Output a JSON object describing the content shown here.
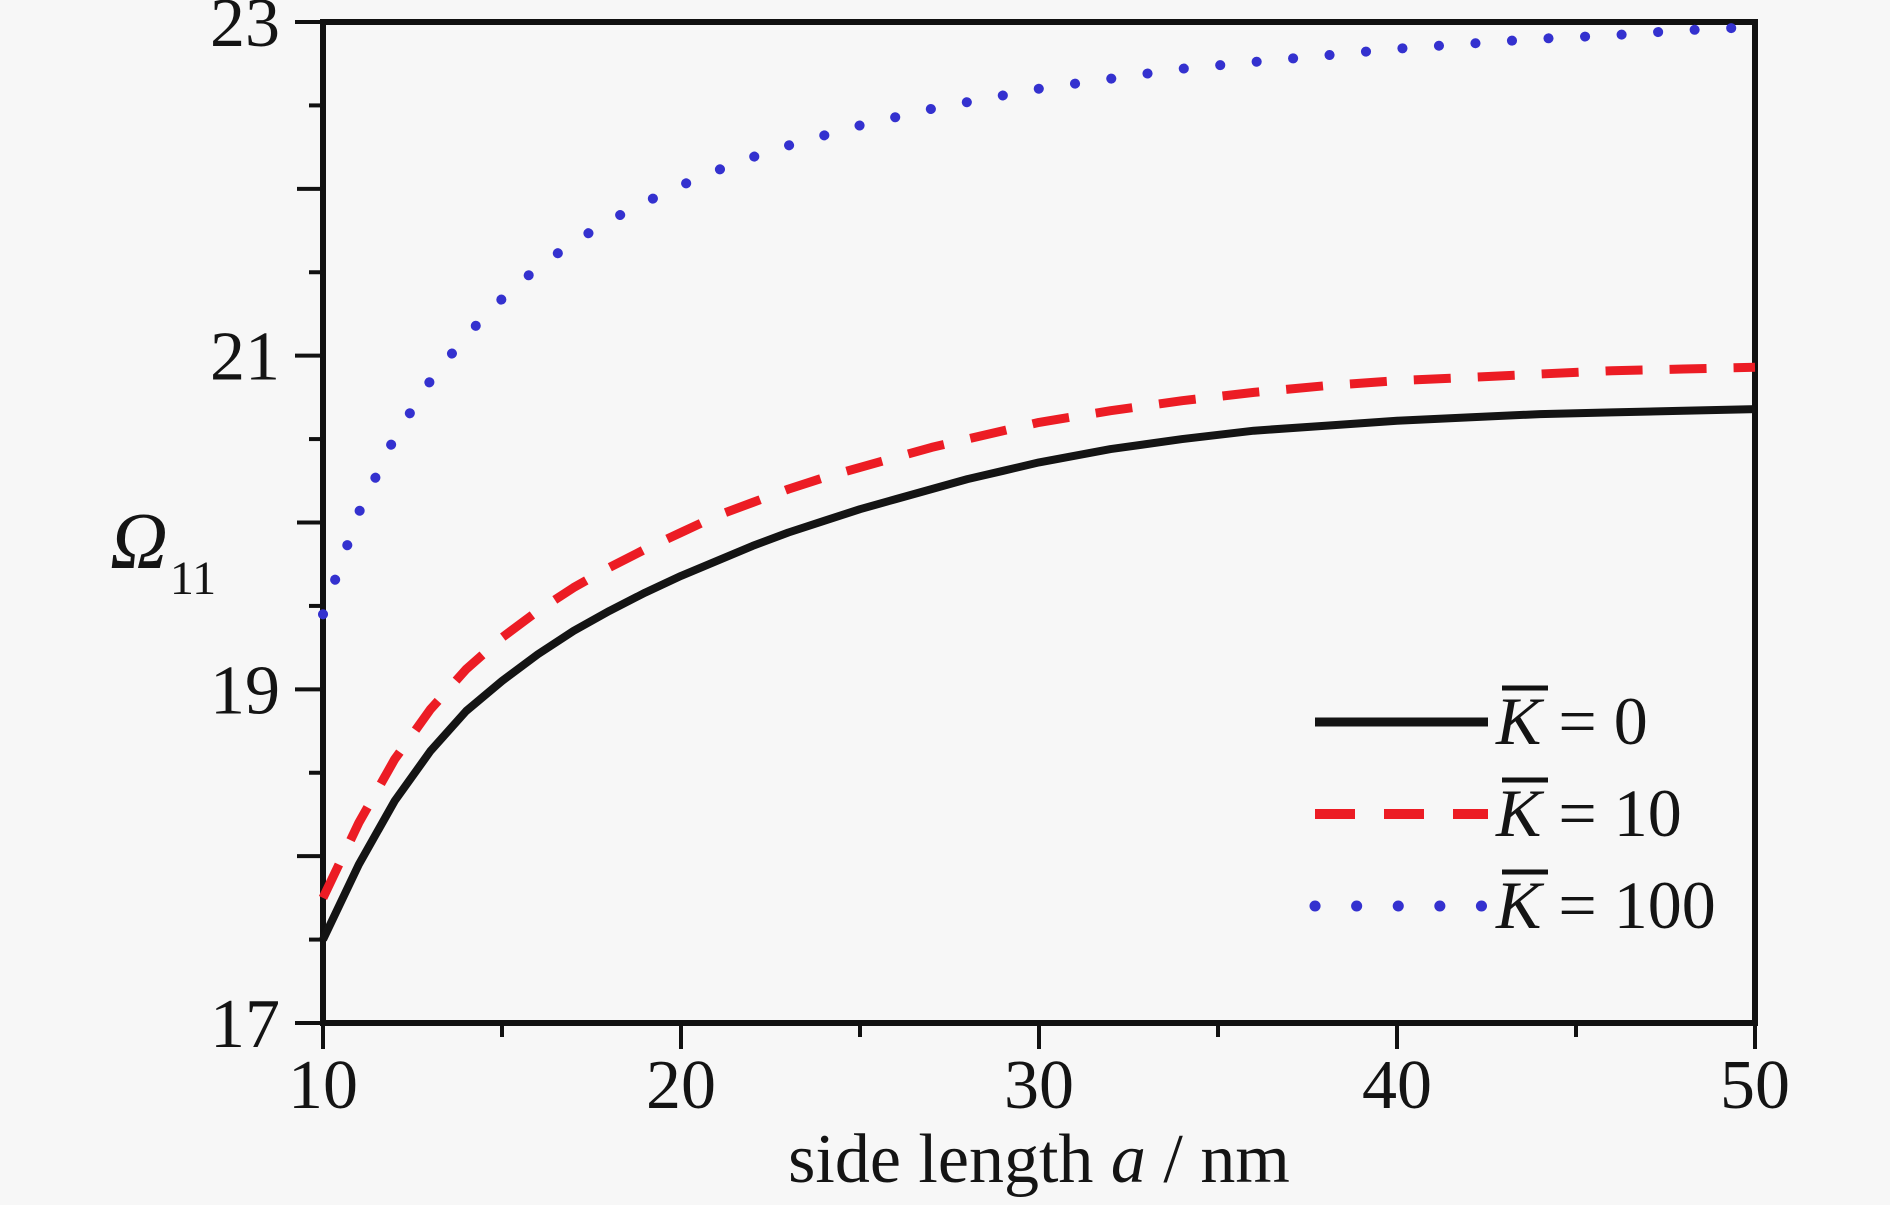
{
  "figure": {
    "background": "#f7f7f7",
    "frame_color": "#111111"
  },
  "chart_data": {
    "type": "line",
    "title": "",
    "xlabel_parts": {
      "prefix": "side length ",
      "italic_symbol": "a",
      "suffix": " / nm"
    },
    "ylabel_parts": {
      "symbol": "Ω",
      "subscript": "11"
    },
    "x_range": [
      10,
      50
    ],
    "y_range": [
      17,
      23
    ],
    "x_major_ticks": [
      {
        "value": 10,
        "label": "10"
      },
      {
        "value": 20,
        "label": "20"
      },
      {
        "value": 30,
        "label": "30"
      },
      {
        "value": 40,
        "label": "40"
      },
      {
        "value": 50,
        "label": "50"
      }
    ],
    "x_minor_ticks": [
      15,
      25,
      35,
      45
    ],
    "y_labeled_ticks": [
      {
        "value": 17,
        "label": "17"
      },
      {
        "value": 19,
        "label": "19"
      },
      {
        "value": 21,
        "label": "21"
      },
      {
        "value": 23,
        "label": "23"
      }
    ],
    "y_mid_ticks": [
      18,
      20,
      22
    ],
    "y_minor_ticks": [
      17.5,
      18.5,
      19.5,
      20.5,
      21.5,
      22.5
    ],
    "grid": false,
    "legend_position": "bottom-right",
    "series": [
      {
        "key": "k0",
        "legend_symbol": "K",
        "legend_overbar": true,
        "legend_suffix": " = 0",
        "color": "#141414",
        "line": "solid",
        "width": 8,
        "points": [
          [
            10,
            17.5
          ],
          [
            11,
            17.95
          ],
          [
            12,
            18.33
          ],
          [
            13,
            18.63
          ],
          [
            14,
            18.87
          ],
          [
            15,
            19.05
          ],
          [
            16,
            19.21
          ],
          [
            17,
            19.35
          ],
          [
            18,
            19.47
          ],
          [
            19,
            19.58
          ],
          [
            20,
            19.68
          ],
          [
            21,
            19.77
          ],
          [
            22,
            19.86
          ],
          [
            23,
            19.94
          ],
          [
            24,
            20.01
          ],
          [
            25,
            20.08
          ],
          [
            26,
            20.14
          ],
          [
            27,
            20.2
          ],
          [
            28,
            20.26
          ],
          [
            29,
            20.31
          ],
          [
            30,
            20.36
          ],
          [
            32,
            20.44
          ],
          [
            34,
            20.5
          ],
          [
            36,
            20.55
          ],
          [
            38,
            20.58
          ],
          [
            40,
            20.61
          ],
          [
            42,
            20.63
          ],
          [
            44,
            20.65
          ],
          [
            46,
            20.66
          ],
          [
            48,
            20.67
          ],
          [
            50,
            20.68
          ]
        ]
      },
      {
        "key": "k10",
        "legend_symbol": "K",
        "legend_overbar": true,
        "legend_suffix": " = 10",
        "color": "#ec1c24",
        "line": "dashed",
        "width": 9,
        "points": [
          [
            10,
            17.75
          ],
          [
            11,
            18.2
          ],
          [
            12,
            18.58
          ],
          [
            13,
            18.88
          ],
          [
            14,
            19.12
          ],
          [
            15,
            19.31
          ],
          [
            16,
            19.47
          ],
          [
            17,
            19.61
          ],
          [
            18,
            19.73
          ],
          [
            19,
            19.84
          ],
          [
            20,
            19.94
          ],
          [
            21,
            20.04
          ],
          [
            22,
            20.12
          ],
          [
            23,
            20.2
          ],
          [
            24,
            20.27
          ],
          [
            25,
            20.33
          ],
          [
            26,
            20.39
          ],
          [
            27,
            20.45
          ],
          [
            28,
            20.5
          ],
          [
            29,
            20.55
          ],
          [
            30,
            20.6
          ],
          [
            32,
            20.67
          ],
          [
            34,
            20.73
          ],
          [
            36,
            20.78
          ],
          [
            38,
            20.82
          ],
          [
            40,
            20.85
          ],
          [
            42,
            20.87
          ],
          [
            44,
            20.89
          ],
          [
            46,
            20.91
          ],
          [
            48,
            20.92
          ],
          [
            50,
            20.93
          ]
        ]
      },
      {
        "key": "k100",
        "legend_symbol": "K",
        "legend_overbar": true,
        "legend_suffix": " = 100",
        "color": "#3431cf",
        "line": "dotted",
        "width": 10,
        "points": [
          [
            10,
            19.45
          ],
          [
            11,
            20.06
          ],
          [
            12,
            20.51
          ],
          [
            13,
            20.85
          ],
          [
            14,
            21.12
          ],
          [
            15,
            21.34
          ],
          [
            16,
            21.53
          ],
          [
            17,
            21.68
          ],
          [
            18,
            21.81
          ],
          [
            19,
            21.92
          ],
          [
            20,
            22.02
          ],
          [
            21,
            22.11
          ],
          [
            22,
            22.19
          ],
          [
            23,
            22.26
          ],
          [
            24,
            22.32
          ],
          [
            25,
            22.38
          ],
          [
            26,
            22.43
          ],
          [
            27,
            22.48
          ],
          [
            28,
            22.52
          ],
          [
            29,
            22.56
          ],
          [
            30,
            22.6
          ],
          [
            32,
            22.66
          ],
          [
            34,
            22.72
          ],
          [
            36,
            22.76
          ],
          [
            38,
            22.8
          ],
          [
            40,
            22.84
          ],
          [
            42,
            22.87
          ],
          [
            44,
            22.9
          ],
          [
            46,
            22.92
          ],
          [
            48,
            22.95
          ],
          [
            50,
            22.97
          ]
        ]
      }
    ]
  }
}
